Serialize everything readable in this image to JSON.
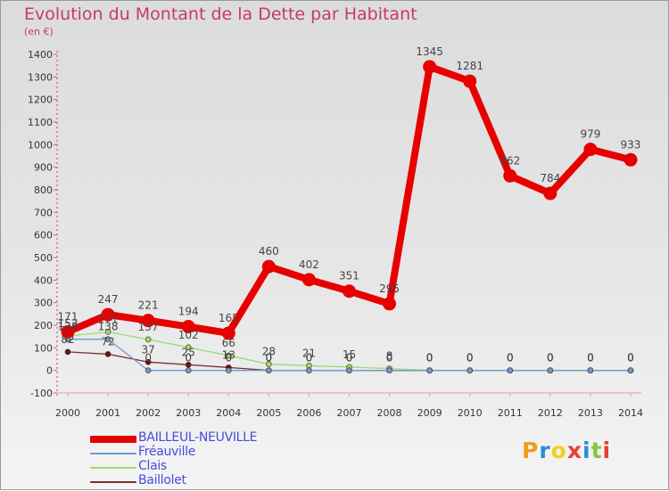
{
  "title": "Evolution du Montant de la Dette par Habitant",
  "unit_label": "(en €)",
  "logo": {
    "text": "Proxiti",
    "colors": [
      "#f39a1b",
      "#2a8fd6",
      "#f3d11b",
      "#e53e30",
      "#2a8fd6",
      "#8ac43e",
      "#e53e30"
    ]
  },
  "chart_data": {
    "type": "line",
    "x": [
      "2000",
      "2001",
      "2002",
      "2003",
      "2004",
      "2005",
      "2006",
      "2007",
      "2008",
      "2009",
      "2010",
      "2011",
      "2012",
      "2013",
      "2014"
    ],
    "ylim": [
      -100,
      1400
    ],
    "yticks": [
      "-100",
      "0",
      "100",
      "200",
      "300",
      "400",
      "500",
      "600",
      "700",
      "800",
      "900",
      "1000",
      "1100",
      "1200",
      "1300",
      "1400"
    ],
    "grid": false,
    "legend_position": "bottom-left",
    "series": [
      {
        "name": "BAILLEUL-NEUVILLE",
        "color": "#e80000",
        "values": [
          171,
          247,
          221,
          194,
          165,
          460,
          402,
          351,
          295,
          1345,
          1281,
          862,
          784,
          979,
          933
        ],
        "labels": [
          "171",
          "247",
          "221",
          "194",
          "165",
          "460",
          "402",
          "351",
          "295",
          "1345",
          "1281",
          "862",
          "784",
          "979",
          "933"
        ]
      },
      {
        "name": "Fréauville",
        "color": "#6b9ccf",
        "values": [
          138,
          138,
          0,
          0,
          0,
          0,
          0,
          0,
          0,
          0,
          0,
          0,
          0,
          0,
          0
        ],
        "labels": [
          "138",
          "138",
          "0",
          "0",
          "0",
          "0",
          "0",
          "0",
          "0",
          "0",
          "0",
          "0",
          "0",
          "0",
          "0"
        ]
      },
      {
        "name": "Clais",
        "color": "#9adb6b",
        "values": [
          152,
          171,
          137,
          102,
          66,
          28,
          21,
          15,
          8,
          0,
          0,
          0,
          0,
          0,
          0
        ],
        "labels": [
          "152",
          "171",
          "137",
          "102",
          "66",
          "28",
          "21",
          "15",
          "8",
          "0",
          "0",
          "0",
          "0",
          "0",
          "0"
        ]
      },
      {
        "name": "Baillolet",
        "color": "#7a2f2f",
        "values": [
          82,
          72,
          37,
          25,
          13,
          0,
          0,
          0,
          0,
          0,
          0,
          0,
          0,
          0,
          0
        ],
        "labels": [
          "82",
          "72",
          "37",
          "25",
          "13",
          "0",
          "0",
          "0",
          "0",
          "0",
          "0",
          "0",
          "0",
          "0",
          "0"
        ]
      }
    ]
  }
}
